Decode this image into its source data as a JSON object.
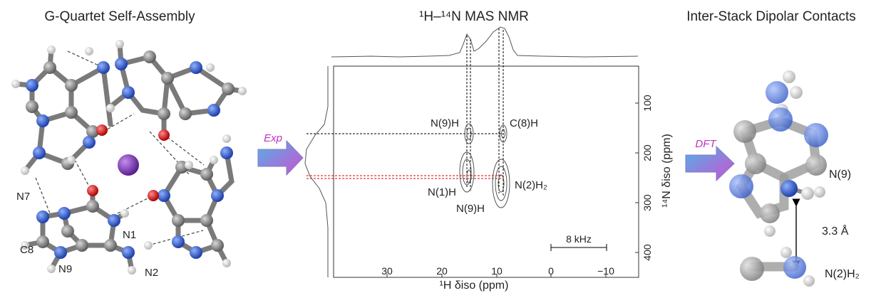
{
  "panels": {
    "left": {
      "title": "G-Quartet Self-Assembly",
      "atom_labels": [
        "N7",
        "N1",
        "C8",
        "N9",
        "N2"
      ]
    },
    "middle": {
      "title": "¹H–¹⁴N MAS NMR",
      "peak_labels": [
        "N(9)H",
        "C(8)H",
        "N(1)H",
        "N(9)H",
        "N(2)H₂"
      ],
      "scale_bar": "8 kHz",
      "x_axis": {
        "label": "¹H δiso (ppm)",
        "ticks": [
          "30",
          "20",
          "10",
          "0",
          "−10"
        ]
      },
      "y_axis": {
        "label": "¹⁴N δiso (ppm)",
        "ticks": [
          "100",
          "200",
          "300",
          "400"
        ]
      }
    },
    "right": {
      "title": "Inter-Stack Dipolar Contacts",
      "labels": [
        "N(9)",
        "3.3 Å",
        "N(2)H₂"
      ]
    }
  },
  "arrows": [
    "Exp",
    "DFT"
  ],
  "colors": {
    "carbon": "#8a8a8a",
    "nitrogen": "#2f5fd0",
    "oxygen": "#e00000",
    "hydrogen": "#f2f2f2",
    "cation": "#7b3fb0",
    "arrow_start": "#4fb3e8",
    "arrow_end": "#d04fd0",
    "guide_black": "#000000",
    "guide_red": "#e00000"
  }
}
